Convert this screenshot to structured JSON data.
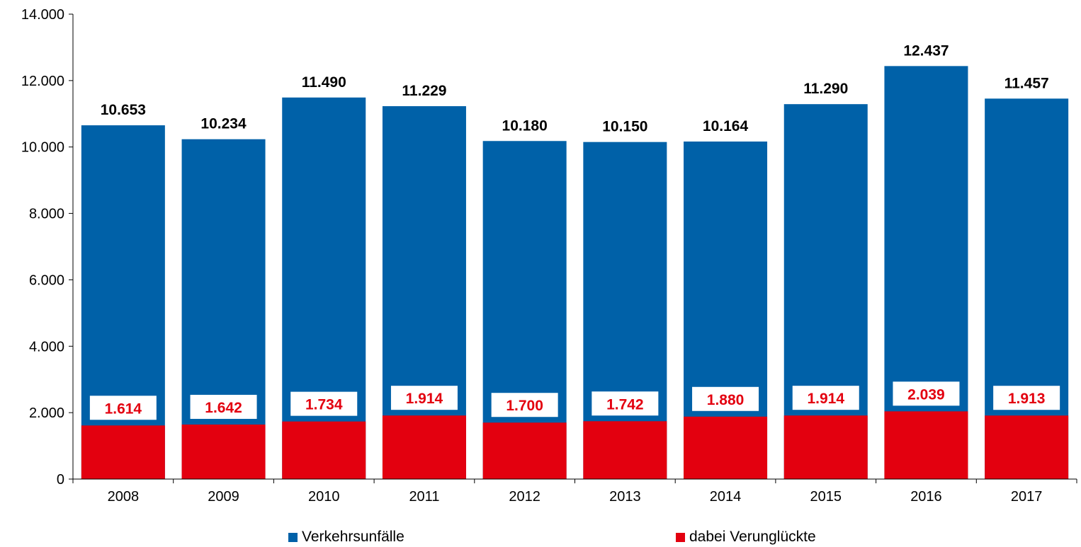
{
  "chart_data": {
    "type": "bar",
    "categories": [
      "2008",
      "2009",
      "2010",
      "2011",
      "2012",
      "2013",
      "2014",
      "2015",
      "2016",
      "2017"
    ],
    "series": [
      {
        "name": "Verkehrsunfälle",
        "color": "#0061A8",
        "values": [
          10653,
          10234,
          11490,
          11229,
          10180,
          10150,
          10164,
          11290,
          12437,
          11457
        ],
        "labels": [
          "10.653",
          "10.234",
          "11.490",
          "11.229",
          "10.180",
          "10.150",
          "10.164",
          "11.290",
          "12.437",
          "11.457"
        ]
      },
      {
        "name": "dabei Verunglückte",
        "color": "#E3000F",
        "values": [
          1614,
          1642,
          1734,
          1914,
          1700,
          1742,
          1880,
          1914,
          2039,
          1913
        ],
        "labels": [
          "1.614",
          "1.642",
          "1.734",
          "1.914",
          "1.700",
          "1.742",
          "1.880",
          "1.914",
          "2.039",
          "1.913"
        ]
      }
    ],
    "ylim": [
      0,
      14000
    ],
    "yticks": [
      0,
      2000,
      4000,
      6000,
      8000,
      10000,
      12000,
      14000
    ],
    "ytick_labels": [
      "0",
      "2.000",
      "4.000",
      "6.000",
      "8.000",
      "10.000",
      "12.000",
      "14.000"
    ],
    "xlabel": "",
    "ylabel": "",
    "title": "",
    "grid": false,
    "legend_position": "bottom"
  }
}
